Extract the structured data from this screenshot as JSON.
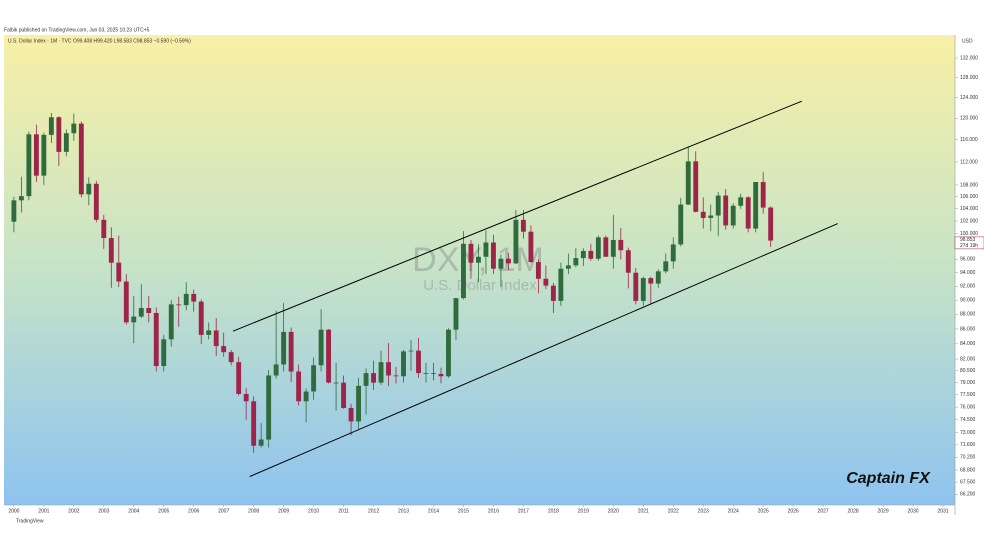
{
  "chart_data": {
    "type": "candlestick",
    "published": "Falbik published on TradingView.com, Jun 03, 2025 10:23 UTC+5",
    "legend_text": "U.S. Dollar Index · 1M · TVC  O99.408 H99.420 L98.583 C98.853 −0.590 (−0.59%)",
    "currency": "USD",
    "watermark_symbol": "DXY, 1M",
    "watermark_name": "U.S. Dollar Index",
    "annotation": "Captain FX",
    "footer": "TradingView",
    "last_price": 98.853,
    "countdown": "27d 19h",
    "log_scale": true,
    "up_color": "#2f6b3c",
    "down_color": "#9e2449",
    "xlim": [
      1999.67,
      2031.4
    ],
    "xticks": [
      2000,
      2001,
      2002,
      2003,
      2004,
      2005,
      2006,
      2007,
      2008,
      2009,
      2010,
      2011,
      2012,
      2013,
      2014,
      2015,
      2016,
      2017,
      2018,
      2019,
      2020,
      2021,
      2022,
      2023,
      2024,
      2025,
      2026,
      2027,
      2028,
      2029,
      2030,
      2031
    ],
    "ylim": [
      65.1,
      136.9
    ],
    "yticks": [
      {
        "value": 66.2,
        "label": "66.200"
      },
      {
        "value": 67.5,
        "label": "67.500"
      },
      {
        "value": 68.8,
        "label": "68.800"
      },
      {
        "value": 70.2,
        "label": "70.200"
      },
      {
        "value": 71.6,
        "label": "71.600"
      },
      {
        "value": 73,
        "label": "73.000"
      },
      {
        "value": 74.5,
        "label": "74.500"
      },
      {
        "value": 76,
        "label": "76.000"
      },
      {
        "value": 77.5,
        "label": "77.500"
      },
      {
        "value": 79,
        "label": "79.000"
      },
      {
        "value": 80.5,
        "label": "80.500"
      },
      {
        "value": 82,
        "label": "82.000"
      },
      {
        "value": 84,
        "label": "84.000"
      },
      {
        "value": 86,
        "label": "86.000"
      },
      {
        "value": 88,
        "label": "88.000"
      },
      {
        "value": 90,
        "label": "90.000"
      },
      {
        "value": 92,
        "label": "92.000"
      },
      {
        "value": 94,
        "label": "94.000"
      },
      {
        "value": 96,
        "label": "96.000"
      },
      {
        "value": 100,
        "label": "100.000"
      },
      {
        "value": 102,
        "label": "102.000"
      },
      {
        "value": 104,
        "label": "104.000"
      },
      {
        "value": 106,
        "label": "106.000"
      },
      {
        "value": 108,
        "label": "108.000"
      },
      {
        "value": 112,
        "label": "112.000"
      },
      {
        "value": 116,
        "label": "116.000"
      },
      {
        "value": 120,
        "label": "120.000"
      },
      {
        "value": 124,
        "label": "124.000"
      },
      {
        "value": 128,
        "label": "128.000"
      },
      {
        "value": 132,
        "label": "132.000"
      }
    ],
    "trend_lines": [
      {
        "x": [
          2007.31,
          2026.29
        ],
        "y": [
          85.7,
          123.3
        ]
      },
      {
        "x": [
          2007.87,
          2027.49
        ],
        "y": [
          68.1,
          101.6
        ]
      }
    ],
    "x": [
      2000,
      2000.25,
      2000.5,
      2000.75,
      2001,
      2001.25,
      2001.5,
      2001.75,
      2002,
      2002.25,
      2002.5,
      2002.75,
      2003,
      2003.25,
      2003.5,
      2003.75,
      2004,
      2004.25,
      2004.5,
      2004.75,
      2005,
      2005.25,
      2005.5,
      2005.75,
      2006,
      2006.25,
      2006.5,
      2006.75,
      2007,
      2007.25,
      2007.5,
      2007.75,
      2008,
      2008.25,
      2008.5,
      2008.75,
      2009,
      2009.25,
      2009.5,
      2009.75,
      2010,
      2010.25,
      2010.5,
      2010.75,
      2011,
      2011.25,
      2011.5,
      2011.75,
      2012,
      2012.25,
      2012.5,
      2012.75,
      2013,
      2013.25,
      2013.5,
      2013.75,
      2014,
      2014.25,
      2014.5,
      2014.75,
      2015,
      2015.25,
      2015.5,
      2015.75,
      2016,
      2016.25,
      2016.5,
      2016.75,
      2017,
      2017.25,
      2017.5,
      2017.75,
      2018,
      2018.25,
      2018.5,
      2018.75,
      2019,
      2019.25,
      2019.5,
      2019.75,
      2020,
      2020.25,
      2020.5,
      2020.75,
      2021,
      2021.25,
      2021.5,
      2021.75,
      2022,
      2022.25,
      2022.5,
      2022.75,
      2023,
      2023.25,
      2023.5,
      2023.75,
      2024,
      2024.25,
      2024.5,
      2024.75,
      2025,
      2025.25
    ],
    "open": [
      101.9,
      105.4,
      106.1,
      117.0,
      109.6,
      116.9,
      120.2,
      113.8,
      117.2,
      119.0,
      106.4,
      108.2,
      102.2,
      99.3,
      95.5,
      92.7,
      86.9,
      87.7,
      88.9,
      88.2,
      81.1,
      84.6,
      89.4,
      89.3,
      90.9,
      89.8,
      85.2,
      85.8,
      83.7,
      82.9,
      81.6,
      77.6,
      76.7,
      71.5,
      72.2,
      79.9,
      81.3,
      85.6,
      80.4,
      76.7,
      77.9,
      81.2,
      85.9,
      79.0,
      79.0,
      75.9,
      74.3,
      78.6,
      80.2,
      79.0,
      81.6,
      79.9,
      79.8,
      83.0,
      83.1,
      80.2,
      80.2,
      80.1,
      79.8,
      85.9,
      90.3,
      98.4,
      95.5,
      96.4,
      98.6,
      94.6,
      96.1,
      95.4,
      102.2,
      100.3,
      95.6,
      93.1,
      92.1,
      89.9,
      94.6,
      95.1,
      96.2,
      97.3,
      96.1,
      99.4,
      96.4,
      99.0,
      97.4,
      94.0,
      89.9,
      93.2,
      92.4,
      94.2,
      95.7,
      98.3,
      104.7,
      112.1,
      103.5,
      102.5,
      102.9,
      106.2,
      101.3,
      104.5,
      105.9,
      100.8,
      108.5,
      104.2
    ],
    "high": [
      106.0,
      109.4,
      117.5,
      118.8,
      117.3,
      121.0,
      120.4,
      117.9,
      120.9,
      119.4,
      109.3,
      108.7,
      103.0,
      101.0,
      99.7,
      93.8,
      90.6,
      92.3,
      90.6,
      89.0,
      85.2,
      90.0,
      90.5,
      92.6,
      91.5,
      90.1,
      86.9,
      87.5,
      85.5,
      83.2,
      82.3,
      78.3,
      77.3,
      74.1,
      80.6,
      88.5,
      89.6,
      86.2,
      81.3,
      78.3,
      82.2,
      88.7,
      86.0,
      81.5,
      79.9,
      76.4,
      79.6,
      80.8,
      81.8,
      83.1,
      84.1,
      81.0,
      83.2,
      84.5,
      84.8,
      81.5,
      81.5,
      80.9,
      86.1,
      90.3,
      100.4,
      99.0,
      98.3,
      100.5,
      99.8,
      96.7,
      97.0,
      103.8,
      103.8,
      101.3,
      96.0,
      95.1,
      92.5,
      95.5,
      96.9,
      97.7,
      97.7,
      98.4,
      99.7,
      99.7,
      103.0,
      100.9,
      97.8,
      94.7,
      93.4,
      93.4,
      94.5,
      96.9,
      99.4,
      105.8,
      114.8,
      113.9,
      105.9,
      104.7,
      106.8,
      107.3,
      104.9,
      106.5,
      106.1,
      108.5,
      110.2,
      104.4
    ],
    "low": [
      100.2,
      103.4,
      105.4,
      108.5,
      108.0,
      115.4,
      111.3,
      113.0,
      115.8,
      105.9,
      104.6,
      101.8,
      97.6,
      91.8,
      91.9,
      86.6,
      84.1,
      87.5,
      86.9,
      80.4,
      80.4,
      83.6,
      86.3,
      88.6,
      88.4,
      84.0,
      84.6,
      82.4,
      82.3,
      81.2,
      77.4,
      74.5,
      70.7,
      71.3,
      71.3,
      79.5,
      80.4,
      79.1,
      76.2,
      74.2,
      76.9,
      80.4,
      78.9,
      75.6,
      75.8,
      72.7,
      73.4,
      75.1,
      78.1,
      78.7,
      78.6,
      78.9,
      79.0,
      80.5,
      79.6,
      79.0,
      79.3,
      78.9,
      79.6,
      84.5,
      90.1,
      93.1,
      92.6,
      93.8,
      93.8,
      91.9,
      94.4,
      95.3,
      99.2,
      95.5,
      91.0,
      91.6,
      88.2,
      89.2,
      93.8,
      94.8,
      95.0,
      95.8,
      95.8,
      96.4,
      94.6,
      96.0,
      91.7,
      89.4,
      89.2,
      89.5,
      91.8,
      93.9,
      94.6,
      98.0,
      104.6,
      103.4,
      100.8,
      100.4,
      99.6,
      100.6,
      100.8,
      104.0,
      100.2,
      100.2,
      103.2,
      97.9
    ],
    "close": [
      105.4,
      106.1,
      117.0,
      109.6,
      116.9,
      120.2,
      113.8,
      117.2,
      119.0,
      106.4,
      108.2,
      102.2,
      99.3,
      95.5,
      92.7,
      86.9,
      87.7,
      88.9,
      88.2,
      81.1,
      84.6,
      89.4,
      89.3,
      90.9,
      89.8,
      85.2,
      85.8,
      83.7,
      82.9,
      81.6,
      77.6,
      76.7,
      71.5,
      72.2,
      79.9,
      81.3,
      85.6,
      80.4,
      76.7,
      77.9,
      81.2,
      85.9,
      79.0,
      79.0,
      75.9,
      74.3,
      78.6,
      80.2,
      79.0,
      81.6,
      79.9,
      79.8,
      83.0,
      83.1,
      80.2,
      80.2,
      80.1,
      79.8,
      85.9,
      90.3,
      98.4,
      95.5,
      96.4,
      98.6,
      94.6,
      96.1,
      95.4,
      102.2,
      100.3,
      95.6,
      93.1,
      92.1,
      89.9,
      94.6,
      95.1,
      96.2,
      97.3,
      96.1,
      99.4,
      96.4,
      99.0,
      97.4,
      94.0,
      89.9,
      93.2,
      92.4,
      94.2,
      95.7,
      98.3,
      104.7,
      112.1,
      103.5,
      102.5,
      102.9,
      106.2,
      101.3,
      104.5,
      105.9,
      100.8,
      108.5,
      104.2,
      98.9
    ]
  }
}
